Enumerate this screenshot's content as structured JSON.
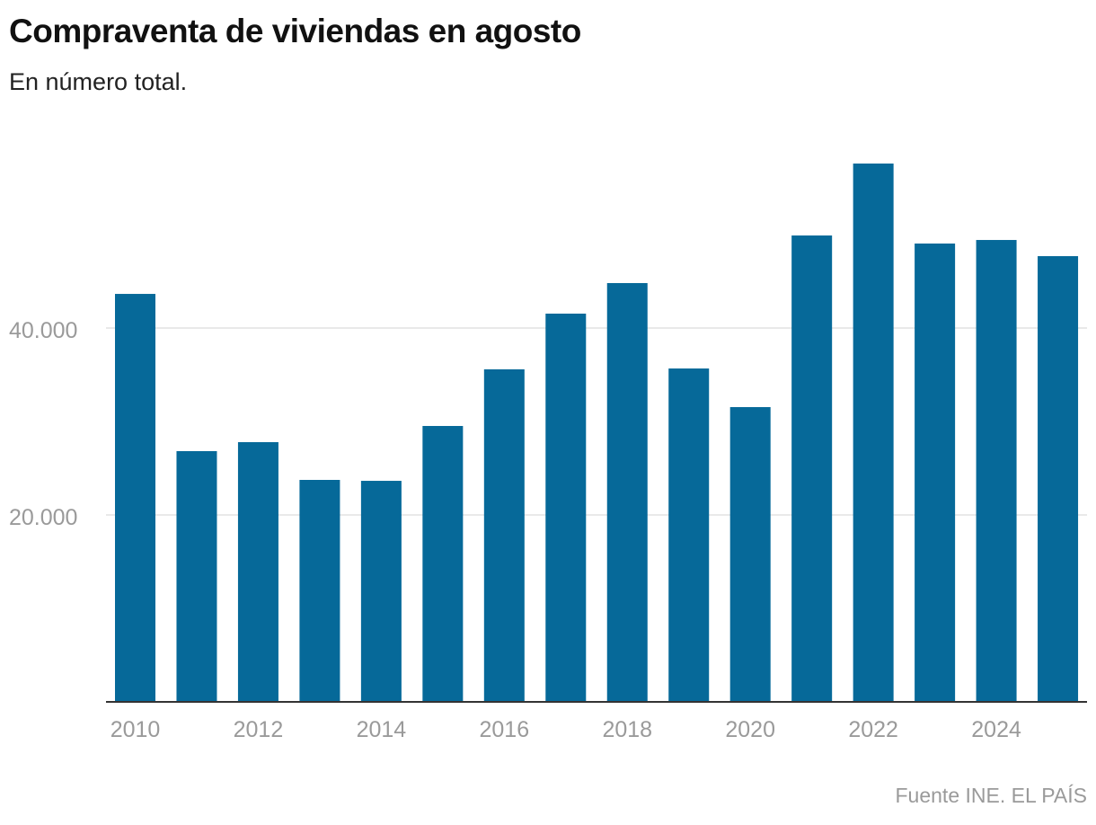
{
  "title": "Compraventa de viviendas en agosto",
  "subtitle": "En número total.",
  "source": "Fuente INE. EL PAÍS",
  "colors": {
    "bar": "#066999",
    "grid": "#e2e2e2",
    "axis": "#333333",
    "tick_text": "#9a9a9a"
  },
  "chart_data": {
    "type": "bar",
    "title": "Compraventa de viviendas en agosto",
    "subtitle": "En número total.",
    "xlabel": "",
    "ylabel": "",
    "categories": [
      "2010",
      "2011",
      "2012",
      "2013",
      "2014",
      "2015",
      "2016",
      "2017",
      "2018",
      "2019",
      "2020",
      "2021",
      "2022",
      "2023",
      "2024",
      "2025"
    ],
    "values": [
      43650,
      26830,
      27790,
      23750,
      23650,
      29520,
      35580,
      41540,
      44810,
      35670,
      31540,
      49900,
      57600,
      49040,
      49420,
      47690
    ],
    "ylim": [
      0,
      60000
    ],
    "yticks": [
      20000,
      40000
    ],
    "ytick_labels": [
      "20.000",
      "40.000"
    ],
    "xtick_labels": [
      "2010",
      "2012",
      "2014",
      "2016",
      "2018",
      "2020",
      "2022",
      "2024"
    ],
    "grid": true,
    "legend": "none"
  }
}
